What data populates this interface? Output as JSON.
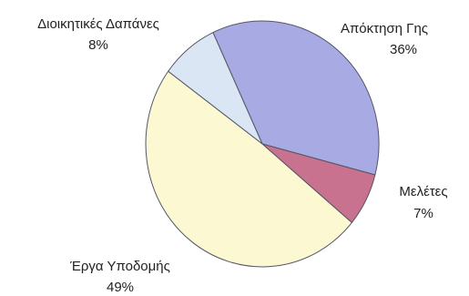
{
  "chart_data": {
    "type": "pie",
    "title": "",
    "slices": [
      {
        "label": "Απόκτηση Γης",
        "value": 36,
        "value_label": "36%",
        "color": "#a8abe3"
      },
      {
        "label": "Μελέτες",
        "value": 7,
        "value_label": "7%",
        "color": "#c9728f"
      },
      {
        "label": "Έργα Υποδομής",
        "value": 49,
        "value_label": "49%",
        "color": "#fbf8d2"
      },
      {
        "label": "Διοικητικές Δαπάνες",
        "value": 8,
        "value_label": "8%",
        "color": "#dbe6f4"
      }
    ]
  }
}
